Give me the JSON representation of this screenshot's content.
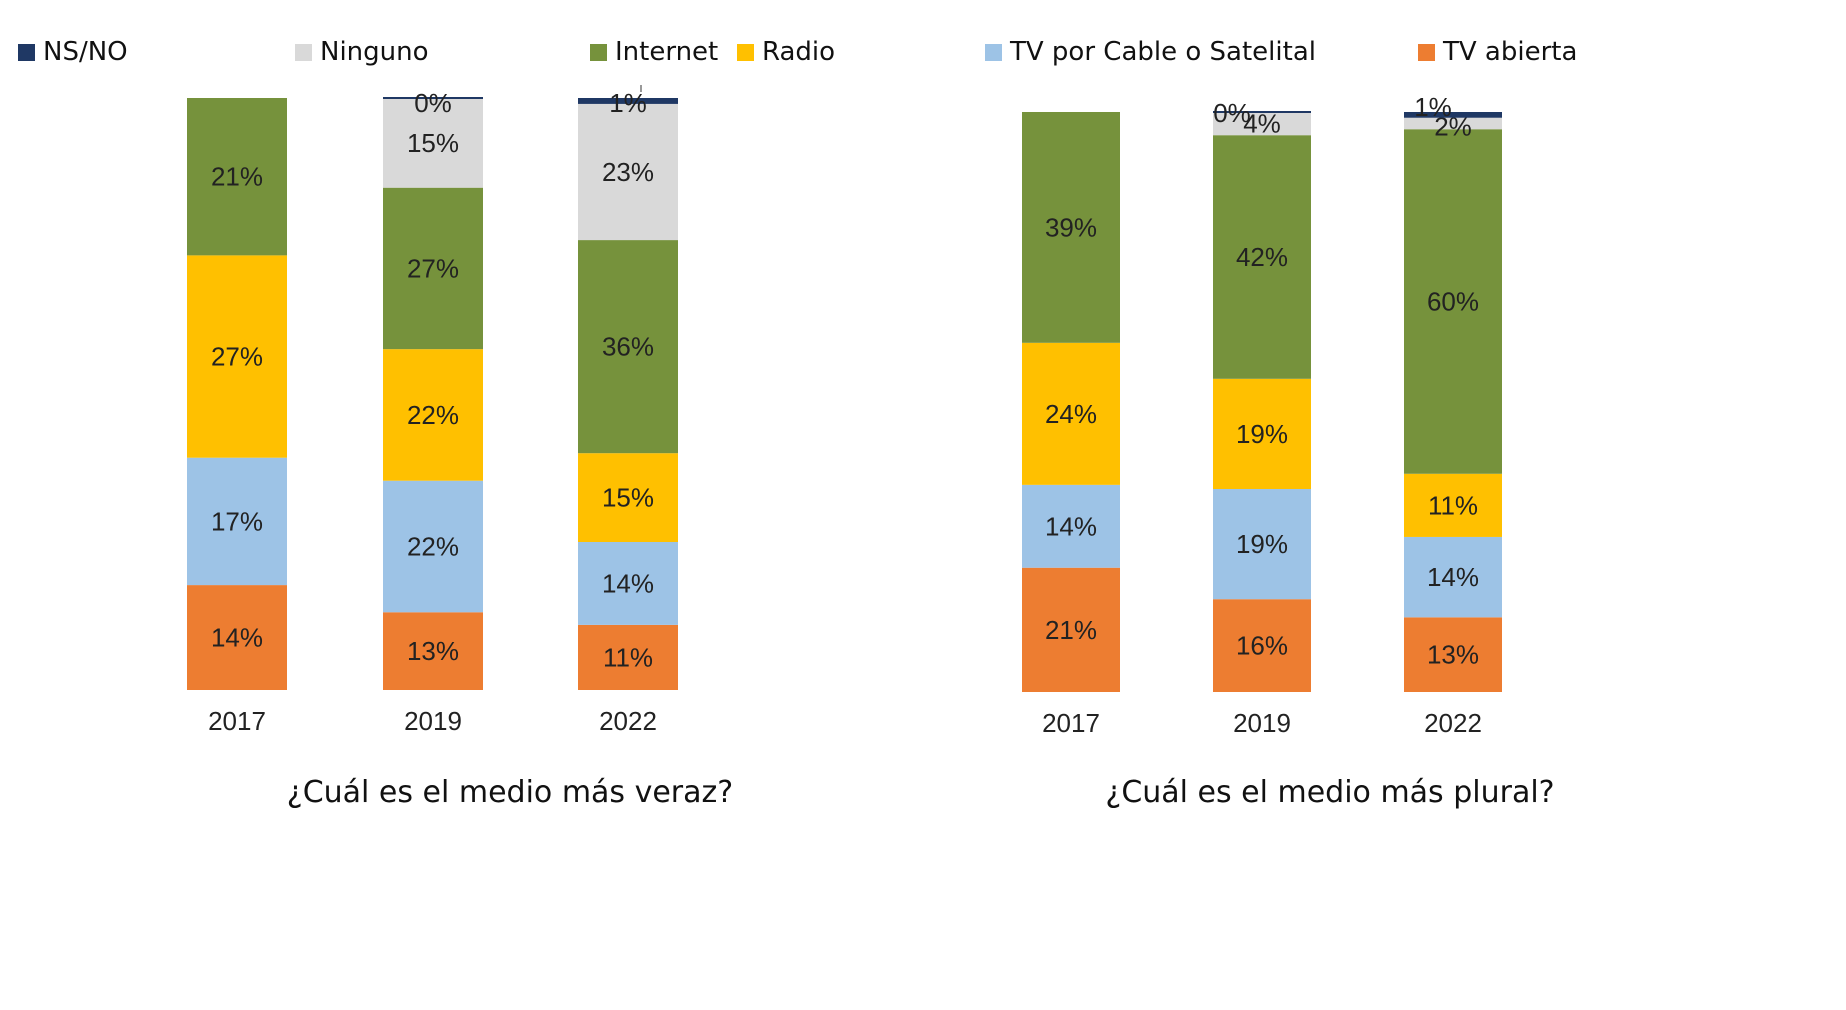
{
  "legend": [
    {
      "key": "nsno",
      "label": "NS/NO",
      "color": "#1f3864"
    },
    {
      "key": "ninguno",
      "label": "Ninguno",
      "color": "#d9d9d9"
    },
    {
      "key": "internet",
      "label": "Internet",
      "color": "#76923c"
    },
    {
      "key": "radio",
      "label": "Radio",
      "color": "#ffc000"
    },
    {
      "key": "cable",
      "label": "TV por Cable o Satelital",
      "color": "#9dc3e6"
    },
    {
      "key": "abierta",
      "label": "TV abierta",
      "color": "#ed7d31"
    }
  ],
  "chart_data": [
    {
      "type": "bar",
      "stacked": true,
      "title": "¿Cuál es el medio más veraz?",
      "categories": [
        "2017",
        "2019",
        "2022"
      ],
      "series": [
        {
          "name": "TV abierta",
          "color": "#ed7d31",
          "values": [
            14,
            13,
            11
          ],
          "labels": [
            "14%",
            "13%",
            "11%"
          ]
        },
        {
          "name": "TV por Cable o Satelital",
          "color": "#9dc3e6",
          "values": [
            17,
            22,
            14
          ],
          "labels": [
            "17%",
            "22%",
            "14%"
          ]
        },
        {
          "name": "Radio",
          "color": "#ffc000",
          "values": [
            27,
            22,
            15
          ],
          "labels": [
            "27%",
            "22%",
            "15%"
          ]
        },
        {
          "name": "Internet",
          "color": "#76923c",
          "values": [
            21,
            27,
            36
          ],
          "labels": [
            "21%",
            "27%",
            "36%"
          ]
        },
        {
          "name": "Ninguno",
          "color": "#d9d9d9",
          "values": [
            0,
            15,
            23
          ],
          "labels": [
            "",
            "15%",
            "23%"
          ]
        },
        {
          "name": "NS/NO",
          "color": "#1f3864",
          "values": [
            0,
            0,
            1
          ],
          "labels": [
            "",
            "0%",
            "1%"
          ]
        }
      ]
    },
    {
      "type": "bar",
      "stacked": true,
      "title": "¿Cuál es el medio más plural?",
      "categories": [
        "2017",
        "2019",
        "2022"
      ],
      "series": [
        {
          "name": "TV abierta",
          "color": "#ed7d31",
          "values": [
            21,
            16,
            13
          ],
          "labels": [
            "21%",
            "16%",
            "13%"
          ]
        },
        {
          "name": "TV por Cable o Satelital",
          "color": "#9dc3e6",
          "values": [
            14,
            19,
            14
          ],
          "labels": [
            "14%",
            "19%",
            "14%"
          ]
        },
        {
          "name": "Radio",
          "color": "#ffc000",
          "values": [
            24,
            19,
            11
          ],
          "labels": [
            "24%",
            "19%",
            "11%"
          ]
        },
        {
          "name": "Internet",
          "color": "#76923c",
          "values": [
            39,
            42,
            60
          ],
          "labels": [
            "39%",
            "42%",
            "60%"
          ]
        },
        {
          "name": "Ninguno",
          "color": "#d9d9d9",
          "values": [
            0,
            4,
            2
          ],
          "labels": [
            "",
            "4%",
            "2%"
          ]
        },
        {
          "name": "NS/NO",
          "color": "#1f3864",
          "values": [
            0,
            0,
            1
          ],
          "labels": [
            "",
            "0%",
            "1%"
          ]
        }
      ]
    }
  ]
}
